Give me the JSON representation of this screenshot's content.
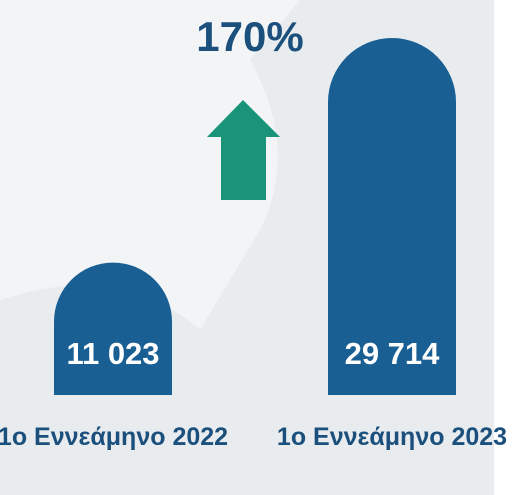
{
  "chart_data": {
    "type": "bar",
    "annotation": "170%",
    "categories": [
      "1ο Εννεάμηνο 2022",
      "1ο Εννεάμηνο 2023"
    ],
    "values": [
      11023,
      29714
    ],
    "value_labels": [
      "11 023",
      "29 714"
    ],
    "color": "#195f93",
    "arrow_color": "#1a9478"
  }
}
